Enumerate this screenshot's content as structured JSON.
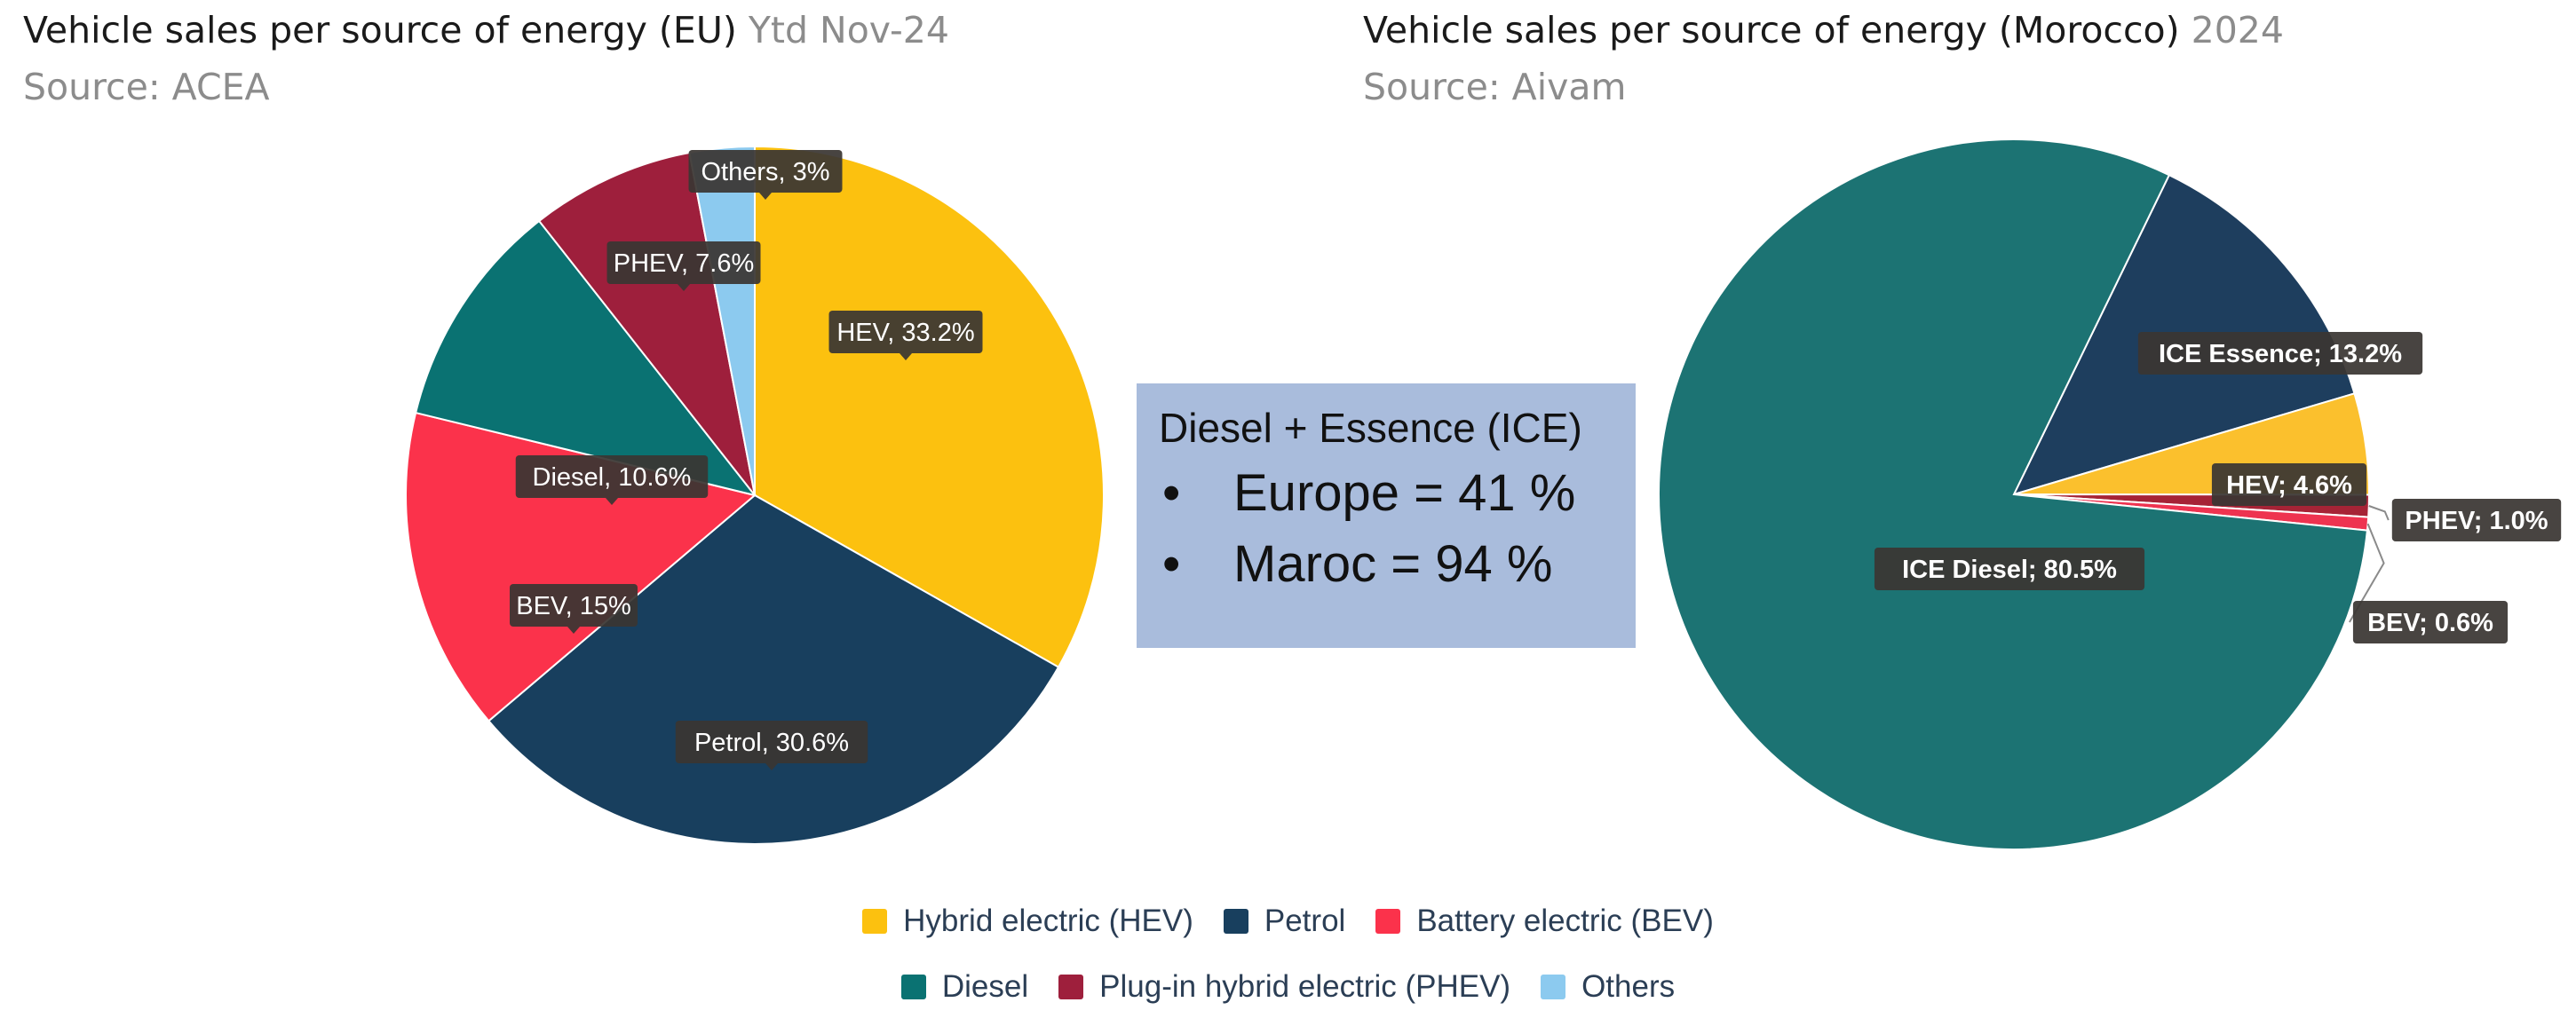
{
  "chart_data": [
    {
      "type": "pie",
      "title": "Vehicle sales per source of energy (EU)",
      "subtitle": "Ytd Nov-24",
      "source": "Source: ACEA",
      "slices": [
        {
          "name": "Hybrid electric (HEV)",
          "value": 33.2,
          "label": "HEV, 33.2%",
          "color": "#fcc10f"
        },
        {
          "name": "Petrol",
          "value": 30.6,
          "label": "Petrol, 30.6%",
          "color": "#183f5e"
        },
        {
          "name": "Battery electric (BEV)",
          "value": 15,
          "label": "BEV, 15%",
          "color": "#fb324b"
        },
        {
          "name": "Diesel",
          "value": 10.6,
          "label": "Diesel, 10.6%",
          "color": "#0a7272"
        },
        {
          "name": "Plug-in hybrid electric (PHEV)",
          "value": 7.6,
          "label": "PHEV, 7.6%",
          "color": "#9e1f3c"
        },
        {
          "name": "Others",
          "value": 3,
          "label": "Others, 3%",
          "color": "#8ccaef"
        }
      ]
    },
    {
      "type": "pie",
      "title": "Vehicle sales per source of energy (Morocco)",
      "subtitle": "2024",
      "source": "Source: Aivam",
      "slices": [
        {
          "name": "ICE Essence",
          "value": 13.2,
          "label": "ICE Essence; 13.2%",
          "color": "#1e3e5e"
        },
        {
          "name": "HEV",
          "value": 4.6,
          "label": "HEV; 4.6%",
          "color": "#fbc02d"
        },
        {
          "name": "PHEV",
          "value": 1.0,
          "label": "PHEV; 1.0%",
          "color": "#a62336"
        },
        {
          "name": "BEV",
          "value": 0.6,
          "label": "BEV; 0.6%",
          "color": "#ee3350"
        },
        {
          "name": "ICE Diesel",
          "value": 80.5,
          "label": "ICE Diesel; 80.5%",
          "color": "#1c7373"
        }
      ]
    }
  ],
  "info_box": {
    "title": "Diesel + Essence (ICE)",
    "bullet": "•",
    "items": [
      "Europe = 41 %",
      "Maroc = 94 %"
    ]
  },
  "legend": [
    {
      "label": "Hybrid electric (HEV)",
      "color": "#fcc10f"
    },
    {
      "label": "Petrol",
      "color": "#183f5e"
    },
    {
      "label": "Battery electric (BEV)",
      "color": "#fb324b"
    },
    {
      "label": "Diesel",
      "color": "#0a7272"
    },
    {
      "label": "Plug-in hybrid electric (PHEV)",
      "color": "#9e1f3c"
    },
    {
      "label": "Others",
      "color": "#8ccaef"
    }
  ]
}
